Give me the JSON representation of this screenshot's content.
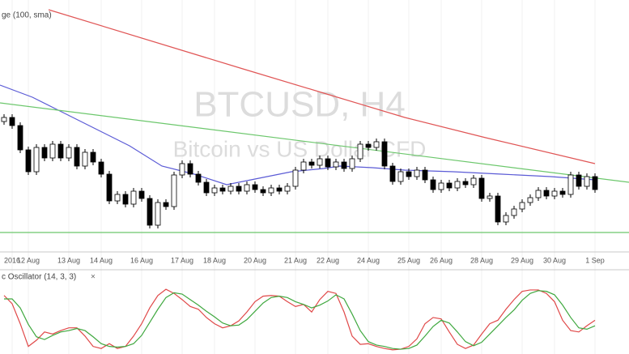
{
  "chart_data": [
    {
      "type": "candlestick",
      "title": "BTCUSD, H4",
      "subtitle": "Bitcoin vs US Dollar CFD",
      "legend_text": "ge (100, sma)",
      "categories": [
        null,
        "2016",
        null,
        "12 Aug",
        null,
        null,
        null,
        null,
        "13 Aug",
        null,
        null,
        null,
        "14 Aug",
        null,
        null,
        null,
        null,
        "16 Aug",
        null,
        null,
        null,
        null,
        "17 Aug",
        null,
        null,
        null,
        "18 Aug",
        null,
        null,
        null,
        null,
        "20 Aug",
        null,
        null,
        null,
        null,
        "21 Aug",
        null,
        null,
        null,
        "22 Aug",
        null,
        null,
        null,
        null,
        "24 Aug",
        null,
        null,
        null,
        null,
        "25 Aug",
        null,
        null,
        null,
        "26 Aug",
        null,
        null,
        null,
        null,
        "28 Aug",
        null,
        null,
        null,
        null,
        "29 Aug",
        null,
        null,
        null,
        "30 Aug",
        null,
        null,
        null,
        null,
        "1 Sep"
      ],
      "open": [
        160,
        165,
        155,
        125,
        98,
        128,
        115,
        132,
        115,
        128,
        105,
        122,
        110,
        95,
        62,
        70,
        58,
        74,
        65,
        32,
        60,
        55,
        94,
        108,
        95,
        85,
        72,
        78,
        74,
        80,
        74,
        82,
        76,
        72,
        78,
        74,
        80,
        100,
        110,
        106,
        114,
        104,
        110,
        102,
        114,
        132,
        128,
        135,
        105,
        86,
        98,
        92,
        100,
        88,
        76,
        84,
        78,
        86,
        82,
        90,
        65,
        68,
        36,
        44,
        52,
        60,
        66,
        75,
        68,
        74,
        70,
        94,
        80,
        92
      ],
      "high": [
        169,
        169,
        159,
        129,
        132,
        132,
        136,
        136,
        132,
        132,
        126,
        126,
        114,
        99,
        74,
        74,
        78,
        78,
        69,
        64,
        64,
        98,
        112,
        112,
        99,
        89,
        82,
        82,
        84,
        84,
        86,
        86,
        80,
        82,
        82,
        84,
        104,
        114,
        114,
        118,
        118,
        114,
        114,
        118,
        136,
        136,
        139,
        139,
        109,
        102,
        102,
        104,
        104,
        92,
        88,
        88,
        90,
        90,
        94,
        94,
        72,
        72,
        48,
        56,
        64,
        70,
        79,
        79,
        78,
        78,
        98,
        98,
        96,
        96
      ],
      "low": [
        156,
        151,
        121,
        94,
        94,
        111,
        111,
        111,
        111,
        101,
        101,
        106,
        91,
        58,
        58,
        54,
        54,
        61,
        28,
        28,
        51,
        51,
        90,
        91,
        81,
        68,
        68,
        70,
        70,
        70,
        70,
        72,
        68,
        68,
        70,
        70,
        76,
        96,
        102,
        102,
        100,
        100,
        98,
        98,
        110,
        124,
        124,
        101,
        82,
        82,
        88,
        88,
        84,
        72,
        72,
        74,
        74,
        78,
        78,
        61,
        61,
        32,
        32,
        40,
        48,
        56,
        62,
        64,
        64,
        66,
        66,
        76,
        76,
        72
      ],
      "close": [
        165,
        155,
        125,
        98,
        128,
        115,
        132,
        115,
        128,
        105,
        122,
        110,
        95,
        62,
        70,
        58,
        74,
        65,
        32,
        60,
        55,
        94,
        108,
        95,
        85,
        72,
        78,
        74,
        80,
        74,
        82,
        76,
        72,
        78,
        74,
        80,
        100,
        110,
        106,
        114,
        104,
        110,
        102,
        114,
        132,
        128,
        135,
        105,
        86,
        98,
        92,
        100,
        88,
        76,
        84,
        78,
        86,
        82,
        90,
        65,
        68,
        36,
        44,
        52,
        60,
        66,
        75,
        68,
        74,
        70,
        94,
        80,
        92,
        76
      ],
      "up_color": "#ffffff",
      "down_color": "#000000",
      "xlim": [
        -0.5,
        77.2
      ],
      "ylim": [
        0,
        310
      ],
      "lines": [
        {
          "color": "#e05555",
          "x": [
            5.5,
            29.5,
            39.5,
            49.5,
            59.5,
            73
          ],
          "values": [
            298,
            225,
            195,
            165,
            140,
            108
          ]
        },
        {
          "color": "#5b5bd6",
          "x": [
            -0.5,
            3.5,
            7.5,
            11.5,
            15.5,
            19.5,
            23.5,
            27.5,
            31.5,
            35.5,
            39.5,
            41.5,
            45.5,
            49.5,
            55.5,
            61.5,
            67.5,
            73
          ],
          "values": [
            205,
            190,
            170,
            150,
            130,
            105,
            95,
            82,
            90,
            98,
            102,
            105,
            103,
            100,
            98,
            95,
            92,
            88
          ]
        },
        {
          "color": "#6cc76c",
          "x": [
            -0.5,
            77.2
          ],
          "values": [
            183,
            85
          ]
        },
        {
          "color": "#6cc76c",
          "x": [
            -0.5,
            77.2
          ],
          "values": [
            23,
            23
          ]
        }
      ]
    },
    {
      "type": "line",
      "title": "c Oscillator (14, 3, 3)",
      "ylim": [
        0,
        100
      ],
      "series": [
        {
          "color": "#e04848",
          "values": [
            85,
            73,
            44,
            11,
            20,
            32,
            29,
            34,
            38,
            38,
            26,
            11,
            8,
            15,
            8,
            11,
            26,
            44,
            67,
            85,
            94,
            88,
            79,
            69,
            65,
            53,
            44,
            38,
            41,
            48,
            61,
            76,
            84,
            85,
            84,
            76,
            69,
            72,
            61,
            79,
            91,
            88,
            61,
            26,
            14,
            15,
            11,
            8,
            6,
            7,
            11,
            22,
            44,
            53,
            51,
            32,
            14,
            8,
            13,
            29,
            44,
            49,
            65,
            79,
            91,
            93,
            93,
            88,
            76,
            49,
            34,
            32,
            41,
            49
          ]
        },
        {
          "color": "#3fa83f",
          "values": [
            80,
            80,
            67,
            43,
            25,
            21,
            27,
            32,
            34,
            37,
            34,
            25,
            15,
            11,
            10,
            11,
            15,
            27,
            46,
            65,
            82,
            89,
            87,
            79,
            71,
            62,
            54,
            45,
            41,
            42,
            50,
            62,
            74,
            82,
            84,
            82,
            76,
            72,
            67,
            71,
            77,
            86,
            80,
            58,
            34,
            18,
            13,
            11,
            8,
            7,
            8,
            13,
            26,
            40,
            49,
            45,
            32,
            18,
            12,
            17,
            29,
            41,
            53,
            64,
            78,
            88,
            92,
            91,
            86,
            71,
            53,
            38,
            36,
            41
          ]
        }
      ]
    }
  ]
}
